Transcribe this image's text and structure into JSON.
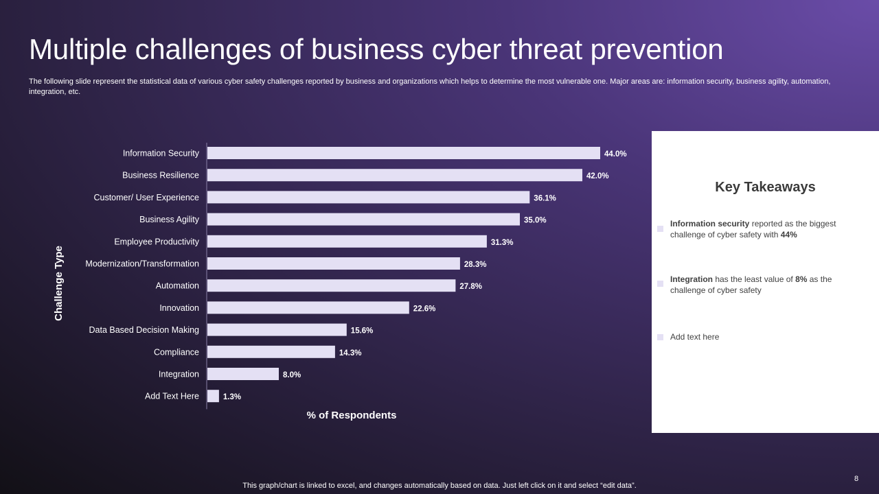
{
  "slide": {
    "title": "Multiple challenges of business cyber threat prevention",
    "subtitle": "The following slide represent the statistical data of various cyber safety challenges reported by business and organizations which helps to determine the most vulnerable one. Major areas are: information security, business agility, automation, integration, etc.",
    "footnote": "This graph/chart is linked to excel, and changes automatically based on data. Just left click on it and select “edit data”.",
    "page_number": "8"
  },
  "takeaways": {
    "title": "Key Takeaways",
    "items": [
      {
        "parts": [
          {
            "text": "Information security",
            "bold": true
          },
          {
            "text": " reported as the biggest challenge of cyber safety with ",
            "bold": false
          },
          {
            "text": "44%",
            "bold": true
          }
        ]
      },
      {
        "parts": [
          {
            "text": "Integration",
            "bold": true
          },
          {
            "text": " has the least value of ",
            "bold": false
          },
          {
            "text": "8%",
            "bold": true
          },
          {
            "text": "  as the challenge of cyber safety",
            "bold": false
          }
        ]
      },
      {
        "parts": [
          {
            "text": "Add text here",
            "bold": false
          }
        ]
      }
    ]
  },
  "colors": {
    "bar": "#e4e0f4",
    "card": "#ffffff",
    "axis": "#8a80a8"
  },
  "chart_data": {
    "type": "bar",
    "orientation": "horizontal",
    "categories": [
      "Information Security",
      "Business Resilience",
      "Customer/ User Experience",
      "Business Agility",
      "Employee Productivity",
      "Modernization/Transformation",
      "Automation",
      "Innovation",
      "Data Based Decision Making",
      "Compliance",
      "Integration",
      "Add Text Here"
    ],
    "values": [
      44.0,
      42.0,
      36.1,
      35.0,
      31.3,
      28.3,
      27.8,
      22.6,
      15.6,
      14.3,
      8.0,
      1.3
    ],
    "labels": [
      "44.0%",
      "42.0%",
      "36.1%",
      "35.0%",
      "31.3%",
      "28.3%",
      "27.8%",
      "22.6%",
      "15.6%",
      "14.3%",
      "8.0%",
      "1.3%"
    ],
    "xlabel": "% of Respondents",
    "ylabel": "Challenge Type",
    "xlim": [
      0,
      47
    ],
    "grid": false,
    "legend": "none"
  }
}
